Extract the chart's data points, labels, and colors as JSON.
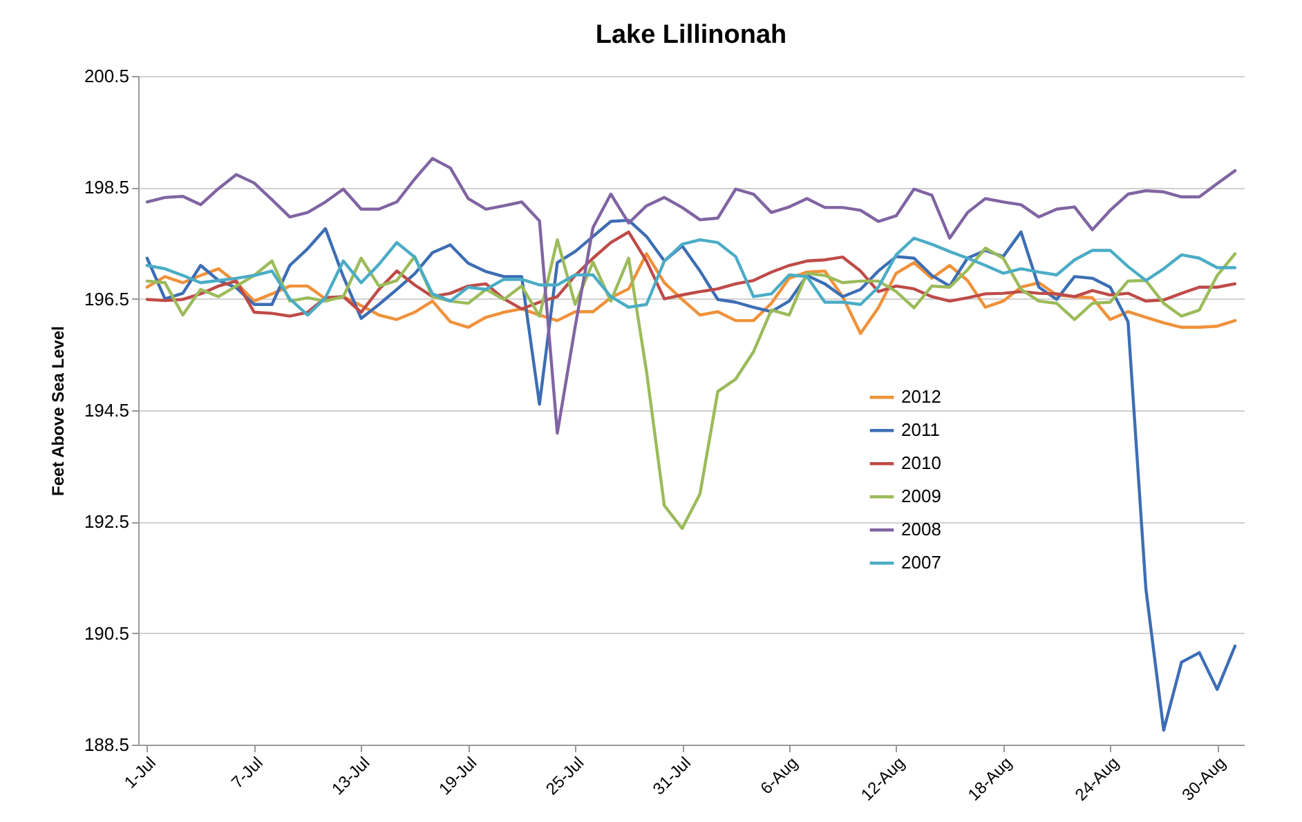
{
  "chart_data": {
    "type": "line",
    "title": "Lake Lillinonah",
    "ylabel": "Feet Above Sea Level",
    "categories": [
      "1-Jul",
      null,
      null,
      null,
      null,
      null,
      "7-Jul",
      null,
      null,
      null,
      null,
      null,
      "13-Jul",
      null,
      null,
      null,
      null,
      null,
      "19-Jul",
      null,
      null,
      null,
      null,
      null,
      "25-Jul",
      null,
      null,
      null,
      null,
      null,
      "31-Jul",
      null,
      null,
      null,
      null,
      null,
      "6-Aug",
      null,
      null,
      null,
      null,
      null,
      "12-Aug",
      null,
      null,
      null,
      null,
      null,
      "18-Aug",
      null,
      null,
      null,
      null,
      null,
      "24-Aug",
      null,
      null,
      null,
      null,
      null,
      "30-Aug",
      null
    ],
    "ylim": [
      188.5,
      200.5
    ],
    "yticks": [
      188.5,
      190.5,
      192.5,
      194.5,
      196.5,
      198.5,
      200.5
    ],
    "grid": "y",
    "legend": "right",
    "marker": "none",
    "line_style": "solid",
    "series": [
      {
        "name": "2012",
        "color": "#f0913a",
        "values": [
          196.71,
          196.9,
          196.79,
          196.92,
          197.04,
          196.79,
          196.46,
          196.59,
          196.73,
          196.73,
          196.5,
          196.54,
          196.38,
          196.21,
          196.13,
          196.26,
          196.46,
          196.09,
          195.99,
          196.17,
          196.26,
          196.32,
          196.21,
          196.11,
          196.27,
          196.27,
          196.52,
          196.68,
          197.31,
          196.79,
          196.49,
          196.21,
          196.27,
          196.11,
          196.11,
          196.42,
          196.87,
          196.98,
          197.0,
          196.54,
          195.88,
          196.34,
          196.96,
          197.15,
          196.87,
          197.1,
          196.83,
          196.35,
          196.46,
          196.71,
          196.79,
          196.57,
          196.54,
          196.52,
          196.13,
          196.27,
          196.17,
          196.07,
          195.99,
          195.99,
          196.01,
          196.11
        ]
      },
      {
        "name": "2011",
        "color": "#3d6eb4",
        "values": [
          197.23,
          196.5,
          196.6,
          197.1,
          196.83,
          196.7,
          196.4,
          196.4,
          197.1,
          197.4,
          197.76,
          196.9,
          196.15,
          196.4,
          196.67,
          196.95,
          197.33,
          197.47,
          197.14,
          196.99,
          196.9,
          196.9,
          194.61,
          197.15,
          197.35,
          197.62,
          197.89,
          197.91,
          197.62,
          197.18,
          197.45,
          197.0,
          196.49,
          196.44,
          196.35,
          196.27,
          196.46,
          196.92,
          196.77,
          196.54,
          196.67,
          197.0,
          197.26,
          197.23,
          196.92,
          196.73,
          197.23,
          197.37,
          197.26,
          197.7,
          196.71,
          196.49,
          196.9,
          196.87,
          196.71,
          196.09,
          191.3,
          188.76,
          189.98,
          190.15,
          189.49,
          190.27
        ]
      },
      {
        "name": "2010",
        "color": "#be4b48",
        "values": [
          196.49,
          196.47,
          196.49,
          196.59,
          196.73,
          196.82,
          196.26,
          196.24,
          196.19,
          196.26,
          196.52,
          196.54,
          196.26,
          196.67,
          197.0,
          196.75,
          196.54,
          196.6,
          196.73,
          196.77,
          196.5,
          196.32,
          196.44,
          196.54,
          196.92,
          197.23,
          197.51,
          197.7,
          197.18,
          196.5,
          196.57,
          196.63,
          196.68,
          196.77,
          196.83,
          196.98,
          197.1,
          197.18,
          197.2,
          197.25,
          197.0,
          196.63,
          196.73,
          196.68,
          196.54,
          196.46,
          196.52,
          196.59,
          196.6,
          196.63,
          196.6,
          196.59,
          196.54,
          196.65,
          196.57,
          196.6,
          196.46,
          196.48,
          196.6,
          196.71,
          196.71,
          196.77
        ]
      },
      {
        "name": "2009",
        "color": "#9bbb59",
        "values": [
          196.82,
          196.79,
          196.21,
          196.67,
          196.54,
          196.73,
          196.92,
          197.18,
          196.46,
          196.52,
          196.46,
          196.54,
          197.23,
          196.73,
          196.83,
          197.26,
          196.54,
          196.46,
          196.42,
          196.67,
          196.49,
          196.73,
          196.19,
          197.56,
          196.4,
          197.16,
          196.46,
          197.23,
          195.2,
          192.79,
          192.38,
          193.0,
          194.84,
          195.06,
          195.55,
          196.3,
          196.21,
          196.96,
          196.92,
          196.79,
          196.82,
          196.82,
          196.63,
          196.34,
          196.73,
          196.71,
          197.02,
          197.41,
          197.23,
          196.67,
          196.46,
          196.42,
          196.13,
          196.42,
          196.44,
          196.82,
          196.83,
          196.42,
          196.19,
          196.3,
          196.92,
          197.31
        ]
      },
      {
        "name": "2008",
        "color": "#8064a2",
        "values": [
          198.24,
          198.32,
          198.34,
          198.19,
          198.48,
          198.73,
          198.58,
          198.28,
          197.97,
          198.05,
          198.24,
          198.47,
          198.11,
          198.11,
          198.24,
          198.65,
          199.02,
          198.85,
          198.3,
          198.11,
          198.17,
          198.24,
          197.9,
          194.09,
          196.0,
          197.78,
          198.38,
          197.86,
          198.17,
          198.32,
          198.14,
          197.92,
          197.95,
          198.47,
          198.38,
          198.05,
          198.15,
          198.3,
          198.14,
          198.14,
          198.09,
          197.89,
          197.99,
          198.47,
          198.36,
          197.59,
          198.05,
          198.3,
          198.24,
          198.19,
          197.97,
          198.11,
          198.15,
          197.74,
          198.09,
          198.38,
          198.44,
          198.42,
          198.33,
          198.33,
          198.57,
          198.8
        ]
      },
      {
        "name": "2007",
        "color": "#4bacc6",
        "values": [
          197.1,
          197.04,
          196.92,
          196.79,
          196.83,
          196.87,
          196.92,
          197.0,
          196.5,
          196.21,
          196.52,
          197.18,
          196.79,
          197.12,
          197.51,
          197.25,
          196.59,
          196.46,
          196.71,
          196.67,
          196.85,
          196.85,
          196.75,
          196.75,
          196.93,
          196.93,
          196.54,
          196.35,
          196.4,
          197.18,
          197.48,
          197.56,
          197.51,
          197.26,
          196.54,
          196.59,
          196.93,
          196.9,
          196.44,
          196.44,
          196.4,
          196.71,
          197.29,
          197.59,
          197.48,
          197.35,
          197.23,
          197.1,
          196.96,
          197.04,
          196.98,
          196.93,
          197.2,
          197.37,
          197.37,
          197.08,
          196.83,
          197.04,
          197.29,
          197.23,
          197.06,
          197.06
        ]
      }
    ]
  }
}
